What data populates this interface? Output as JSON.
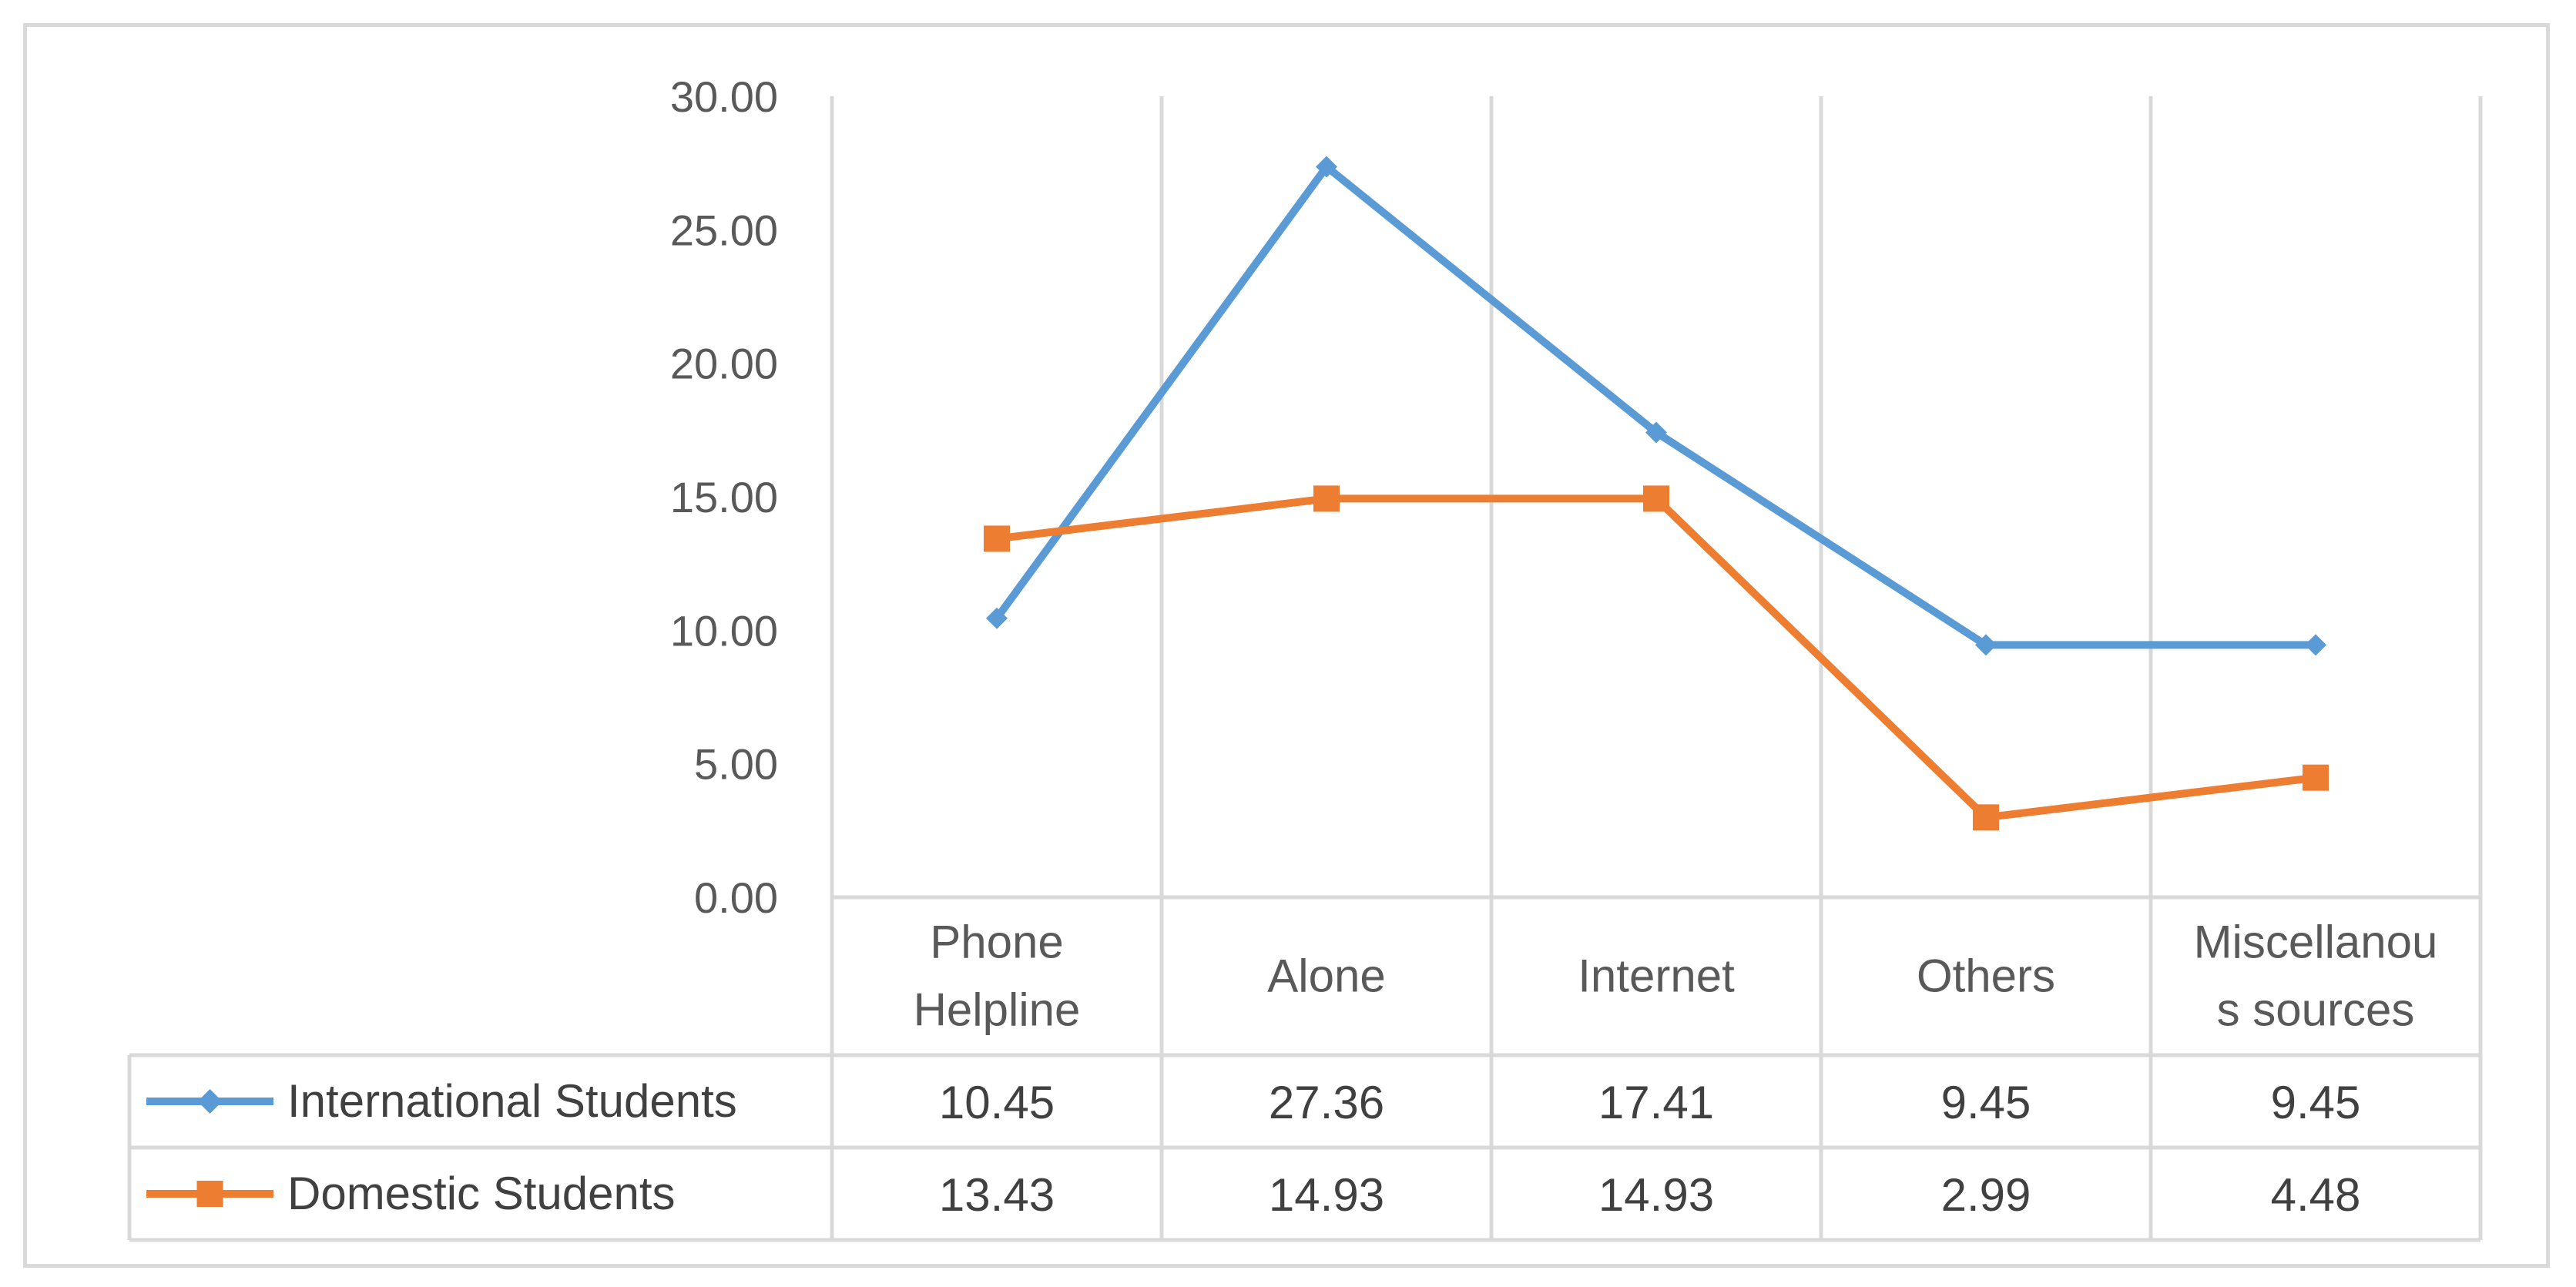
{
  "chart_data": {
    "type": "line",
    "title": "",
    "xlabel": "",
    "ylabel": "",
    "ylim": [
      0,
      30
    ],
    "yticks": [
      "0.00",
      "5.00",
      "10.00",
      "15.00",
      "20.00",
      "25.00",
      "30.00"
    ],
    "categories": [
      [
        "Phone",
        "Helpline"
      ],
      [
        "Alone"
      ],
      [
        "Internet"
      ],
      [
        "Others"
      ],
      [
        "Miscellanou",
        "s sources"
      ]
    ],
    "grid": true,
    "legend": "data-table-left",
    "series": [
      {
        "name": "International Students",
        "color": "#5b9bd5",
        "marker": "diamond",
        "values": [
          10.45,
          27.36,
          17.41,
          9.45,
          9.45
        ],
        "labels": [
          "10.45",
          "27.36",
          "17.41",
          "9.45",
          "9.45"
        ]
      },
      {
        "name": "Domestic Students",
        "color": "#ed7d31",
        "marker": "square",
        "values": [
          13.43,
          14.93,
          14.93,
          2.99,
          4.48
        ],
        "labels": [
          "13.43",
          "14.93",
          "14.93",
          "2.99",
          "4.48"
        ]
      }
    ]
  }
}
